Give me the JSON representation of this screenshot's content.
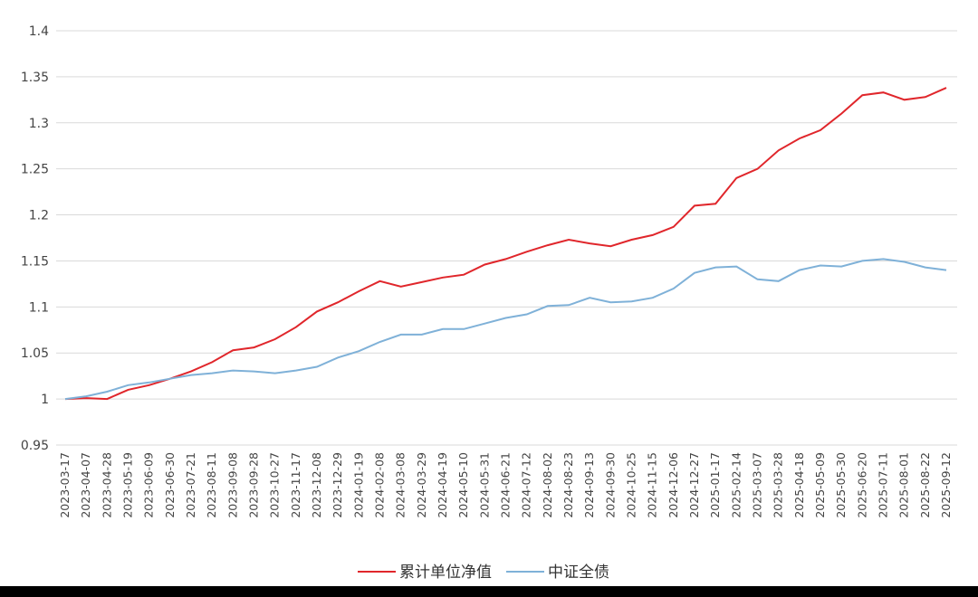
{
  "chart_data": {
    "type": "line",
    "categories": [
      "2023-03-17",
      "2023-04-07",
      "2023-04-28",
      "2023-05-19",
      "2023-06-09",
      "2023-06-30",
      "2023-07-21",
      "2023-08-11",
      "2023-09-08",
      "2023-09-28",
      "2023-10-27",
      "2023-11-17",
      "2023-12-08",
      "2023-12-29",
      "2024-01-19",
      "2024-02-08",
      "2024-03-08",
      "2024-03-29",
      "2024-04-19",
      "2024-05-10",
      "2024-05-31",
      "2024-06-21",
      "2024-07-12",
      "2024-08-02",
      "2024-08-23",
      "2024-09-13",
      "2024-09-30",
      "2024-10-25",
      "2024-11-15",
      "2024-12-06",
      "2024-12-27",
      "2025-01-17",
      "2025-02-14",
      "2025-03-07",
      "2025-03-28",
      "2025-04-18",
      "2025-05-09",
      "2025-05-30",
      "2025-06-20",
      "2025-07-11",
      "2025-08-01",
      "2025-08-22",
      "2025-09-12"
    ],
    "series": [
      {
        "name": "累计单位净值",
        "color": "#e0262b",
        "values": [
          1.0,
          1.001,
          1.0,
          1.01,
          1.015,
          1.022,
          1.03,
          1.04,
          1.053,
          1.056,
          1.065,
          1.078,
          1.095,
          1.105,
          1.117,
          1.128,
          1.122,
          1.127,
          1.132,
          1.135,
          1.146,
          1.152,
          1.16,
          1.167,
          1.173,
          1.169,
          1.166,
          1.173,
          1.178,
          1.187,
          1.21,
          1.212,
          1.24,
          1.25,
          1.27,
          1.283,
          1.292,
          1.31,
          1.33,
          1.333,
          1.325,
          1.328,
          1.338
        ]
      },
      {
        "name": "中证全债",
        "color": "#7fb1d8",
        "values": [
          1.0,
          1.003,
          1.008,
          1.015,
          1.018,
          1.022,
          1.026,
          1.028,
          1.031,
          1.03,
          1.028,
          1.031,
          1.035,
          1.045,
          1.052,
          1.062,
          1.07,
          1.07,
          1.076,
          1.076,
          1.082,
          1.088,
          1.092,
          1.101,
          1.102,
          1.11,
          1.105,
          1.106,
          1.11,
          1.12,
          1.137,
          1.143,
          1.144,
          1.13,
          1.128,
          1.14,
          1.145,
          1.144,
          1.15,
          1.152,
          1.149,
          1.143,
          1.14
        ]
      }
    ],
    "ylim": [
      0.95,
      1.4
    ],
    "yticks": [
      0.95,
      1,
      1.05,
      1.1,
      1.15,
      1.2,
      1.25,
      1.3,
      1.35,
      1.4
    ],
    "grid": true,
    "legend": "bottom"
  }
}
